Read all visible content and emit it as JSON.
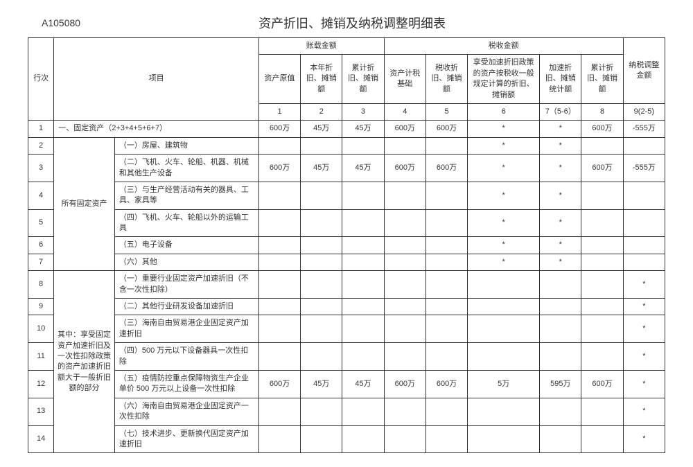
{
  "form_code": "A105080",
  "title": "资产折旧、摊销及纳税调整明细表",
  "head": {
    "row_idx": "行次",
    "project": "项目",
    "book_group": "账载金额",
    "tax_group": "税收金额",
    "c1": "资产原值",
    "c2": "本年折旧、摊销额",
    "c3": "累计折旧、摊销额",
    "c4": "资产计税基础",
    "c5": "税收折旧、摊销额",
    "c6": "享受加速折旧政策的资产按税收一般规定计算的折旧、摊销额",
    "c7": "加速折旧、摊销统计额",
    "c8": "累计折旧、摊销额",
    "c9": "纳税调整金额",
    "n1": "1",
    "n2": "2",
    "n3": "3",
    "n4": "4",
    "n5": "5",
    "n6": "6",
    "n7": "7（5-6）",
    "n8": "8",
    "n9": "9(2-5)"
  },
  "group1": "所有固定资产",
  "group2": "其中：享受固定资产加速折旧及一次性扣除政策的资产加速折旧额大于一般折旧额的部分",
  "rows": {
    "r1": {
      "idx": "1",
      "item": "一、固定资产（2+3+4+5+6+7）",
      "c1": "600万",
      "c2": "45万",
      "c3": "45万",
      "c4": "600万",
      "c5": "600万",
      "c6": "*",
      "c7": "*",
      "c8": "600万",
      "c9": "-555万"
    },
    "r2": {
      "idx": "2",
      "item": "（一）房屋、建筑物",
      "c1": "",
      "c2": "",
      "c3": "",
      "c4": "",
      "c5": "",
      "c6": "*",
      "c7": "*",
      "c8": "",
      "c9": ""
    },
    "r3": {
      "idx": "3",
      "item": "（二）飞机、火车、轮船、机器、机械和其他生产设备",
      "c1": "600万",
      "c2": "45万",
      "c3": "45万",
      "c4": "600万",
      "c5": "600万",
      "c6": "*",
      "c7": "*",
      "c8": "600万",
      "c9": "-555万"
    },
    "r4": {
      "idx": "4",
      "item": "（三）与生产经营活动有关的器具、工具、家具等",
      "c1": "",
      "c2": "",
      "c3": "",
      "c4": "",
      "c5": "",
      "c6": "*",
      "c7": "*",
      "c8": "",
      "c9": ""
    },
    "r5": {
      "idx": "5",
      "item": "（四）飞机、火车、轮船以外的运输工具",
      "c1": "",
      "c2": "",
      "c3": "",
      "c4": "",
      "c5": "",
      "c6": "*",
      "c7": "*",
      "c8": "",
      "c9": ""
    },
    "r6": {
      "idx": "6",
      "item": "（五）电子设备",
      "c1": "",
      "c2": "",
      "c3": "",
      "c4": "",
      "c5": "",
      "c6": "*",
      "c7": "*",
      "c8": "",
      "c9": ""
    },
    "r7": {
      "idx": "7",
      "item": "（六）其他",
      "c1": "",
      "c2": "",
      "c3": "",
      "c4": "",
      "c5": "",
      "c6": "*",
      "c7": "*",
      "c8": "",
      "c9": ""
    },
    "r8": {
      "idx": "8",
      "item": "（一）重要行业固定资产加速折旧（不含一次性扣除）",
      "c1": "",
      "c2": "",
      "c3": "",
      "c4": "",
      "c5": "",
      "c6": "",
      "c7": "",
      "c8": "",
      "c9": "*"
    },
    "r9": {
      "idx": "9",
      "item": "（二）其他行业研发设备加速折旧",
      "c1": "",
      "c2": "",
      "c3": "",
      "c4": "",
      "c5": "",
      "c6": "",
      "c7": "",
      "c8": "",
      "c9": "*"
    },
    "r10": {
      "idx": "10",
      "item": "（三）海南自由贸易港企业固定资产加速折旧",
      "c1": "",
      "c2": "",
      "c3": "",
      "c4": "",
      "c5": "",
      "c6": "",
      "c7": "",
      "c8": "",
      "c9": "*"
    },
    "r11": {
      "idx": "11",
      "item": "（四）500 万元以下设备器具一次性扣除",
      "c1": "",
      "c2": "",
      "c3": "",
      "c4": "",
      "c5": "",
      "c6": "",
      "c7": "",
      "c8": "",
      "c9": "*"
    },
    "r12": {
      "idx": "12",
      "item": "（五）疫情防控重点保障物资生产企业单价 500 万元以上设备一次性扣除",
      "c1": "600万",
      "c2": "45万",
      "c3": "45万",
      "c4": "600万",
      "c5": "600万",
      "c6": "5万",
      "c7": "595万",
      "c8": "600万",
      "c9": "*"
    },
    "r13": {
      "idx": "13",
      "item": "（六）海南自由贸易港企业固定资产一次性扣除",
      "c1": "",
      "c2": "",
      "c3": "",
      "c4": "",
      "c5": "",
      "c6": "",
      "c7": "",
      "c8": "",
      "c9": "*"
    },
    "r14": {
      "idx": "14",
      "item": "（七）技术进步、更新换代固定资产加速折旧",
      "c1": "",
      "c2": "",
      "c3": "",
      "c4": "",
      "c5": "",
      "c6": "",
      "c7": "",
      "c8": "",
      "c9": "*"
    }
  }
}
